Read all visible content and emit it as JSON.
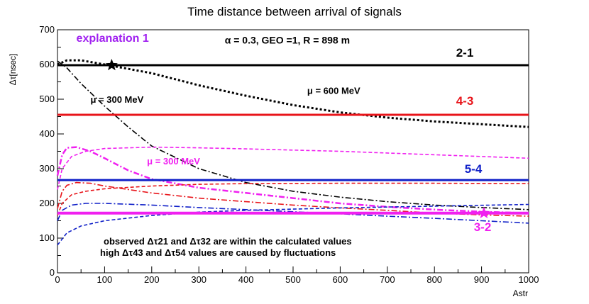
{
  "chart_data": {
    "type": "line",
    "title": "Time distance between arrival of signals",
    "xlabel": "Astr",
    "ylabel": "Δτ[nsec]",
    "xlim": [
      0,
      1000
    ],
    "ylim": [
      0,
      700
    ],
    "xticks": [
      0,
      100,
      200,
      300,
      400,
      500,
      600,
      700,
      800,
      900,
      1000
    ],
    "yticks": [
      0,
      100,
      200,
      300,
      400,
      500,
      600,
      700
    ],
    "grid": false,
    "horizontal_lines": [
      {
        "label": "2-1",
        "value": 598,
        "color": "#000000"
      },
      {
        "label": "4-3",
        "value": 455,
        "color": "#e8141a"
      },
      {
        "label": "5-4",
        "value": 267,
        "color": "#1020c8"
      },
      {
        "label": "3-2",
        "value": 172,
        "color": "#f020f0"
      }
    ],
    "series": [
      {
        "name": "mu 600 MeV 2-1",
        "color": "#000000",
        "style": "dotted",
        "x": [
          0,
          20,
          50,
          100,
          200,
          300,
          400,
          500,
          600,
          700,
          800,
          900,
          1000
        ],
        "y": [
          600,
          612,
          612,
          600,
          575,
          540,
          510,
          483,
          462,
          447,
          436,
          428,
          420
        ]
      },
      {
        "name": "mu 300 MeV 2-1",
        "color": "#000000",
        "style": "dashdot",
        "x": [
          0,
          20,
          50,
          100,
          150,
          200,
          300,
          400,
          500,
          600,
          700,
          800,
          900,
          1000
        ],
        "y": [
          610,
          590,
          545,
          480,
          420,
          365,
          300,
          260,
          235,
          218,
          205,
          195,
          188,
          182
        ]
      },
      {
        "name": "mu 600 MeV 3-2",
        "color": "#f020f0",
        "style": "dashed",
        "x": [
          0,
          10,
          30,
          60,
          100,
          200,
          300,
          400,
          600,
          800,
          1000
        ],
        "y": [
          240,
          300,
          335,
          350,
          358,
          362,
          360,
          357,
          350,
          340,
          330
        ]
      },
      {
        "name": "mu 300 MeV 3-2",
        "color": "#f020f0",
        "style": "dashdot",
        "x": [
          0,
          10,
          20,
          40,
          70,
          100,
          150,
          200,
          300,
          400,
          500,
          600,
          700,
          800,
          900,
          1000
        ],
        "y": [
          280,
          340,
          360,
          362,
          350,
          330,
          295,
          270,
          245,
          230,
          215,
          200,
          190,
          182,
          176,
          172
        ]
      },
      {
        "name": "mu 600 MeV 4-3",
        "color": "#e8141a",
        "style": "dashed",
        "x": [
          0,
          10,
          30,
          60,
          100,
          200,
          300,
          400,
          600,
          800,
          1000
        ],
        "y": [
          165,
          200,
          225,
          235,
          242,
          250,
          255,
          257,
          258,
          258,
          257
        ]
      },
      {
        "name": "mu 300 MeV 4-3",
        "color": "#e8141a",
        "style": "dashdot",
        "x": [
          0,
          10,
          20,
          40,
          70,
          100,
          200,
          300,
          400,
          500,
          600,
          700,
          800,
          900,
          1000
        ],
        "y": [
          185,
          235,
          252,
          260,
          258,
          250,
          230,
          215,
          205,
          195,
          187,
          180,
          172,
          167,
          163
        ]
      },
      {
        "name": "mu 600 MeV 5-4",
        "color": "#1020c8",
        "style": "dashed",
        "x": [
          0,
          20,
          50,
          100,
          200,
          300,
          400,
          600,
          800,
          1000
        ],
        "y": [
          80,
          115,
          135,
          150,
          165,
          175,
          180,
          187,
          192,
          197
        ]
      },
      {
        "name": "mu 300 MeV 5-4",
        "color": "#1020c8",
        "style": "dashdot",
        "x": [
          0,
          10,
          30,
          60,
          100,
          200,
          300,
          400,
          500,
          600,
          700,
          800,
          900,
          1000
        ],
        "y": [
          150,
          180,
          195,
          200,
          200,
          195,
          188,
          182,
          176,
          170,
          163,
          157,
          150,
          143
        ]
      }
    ],
    "markers": [
      {
        "name": "star-2-1",
        "x": 115,
        "y": 598,
        "color": "#000000"
      },
      {
        "name": "star-3-2",
        "x": 905,
        "y": 172,
        "color": "#f020f0"
      }
    ],
    "annotations": [
      {
        "text": "explanation 1",
        "color": "#a020f0",
        "x": 40,
        "y": 665
      },
      {
        "text": "α = 0.3, GEO =1, R = 898 m",
        "color": "#000000",
        "x": 355,
        "y": 660
      },
      {
        "text": "μ = 300 MeV",
        "color": "#000000",
        "x": 70,
        "y": 490
      },
      {
        "text": "μ = 600 MeV",
        "color": "#000000",
        "x": 530,
        "y": 515
      },
      {
        "text": "μ = 300 MeV",
        "color": "#f020f0",
        "x": 190,
        "y": 312
      }
    ],
    "notes": [
      "observed Δτ21 and Δτ32 are within the calculated values",
      "high Δτ43 and Δτ54 values are caused by fluctuations"
    ]
  }
}
